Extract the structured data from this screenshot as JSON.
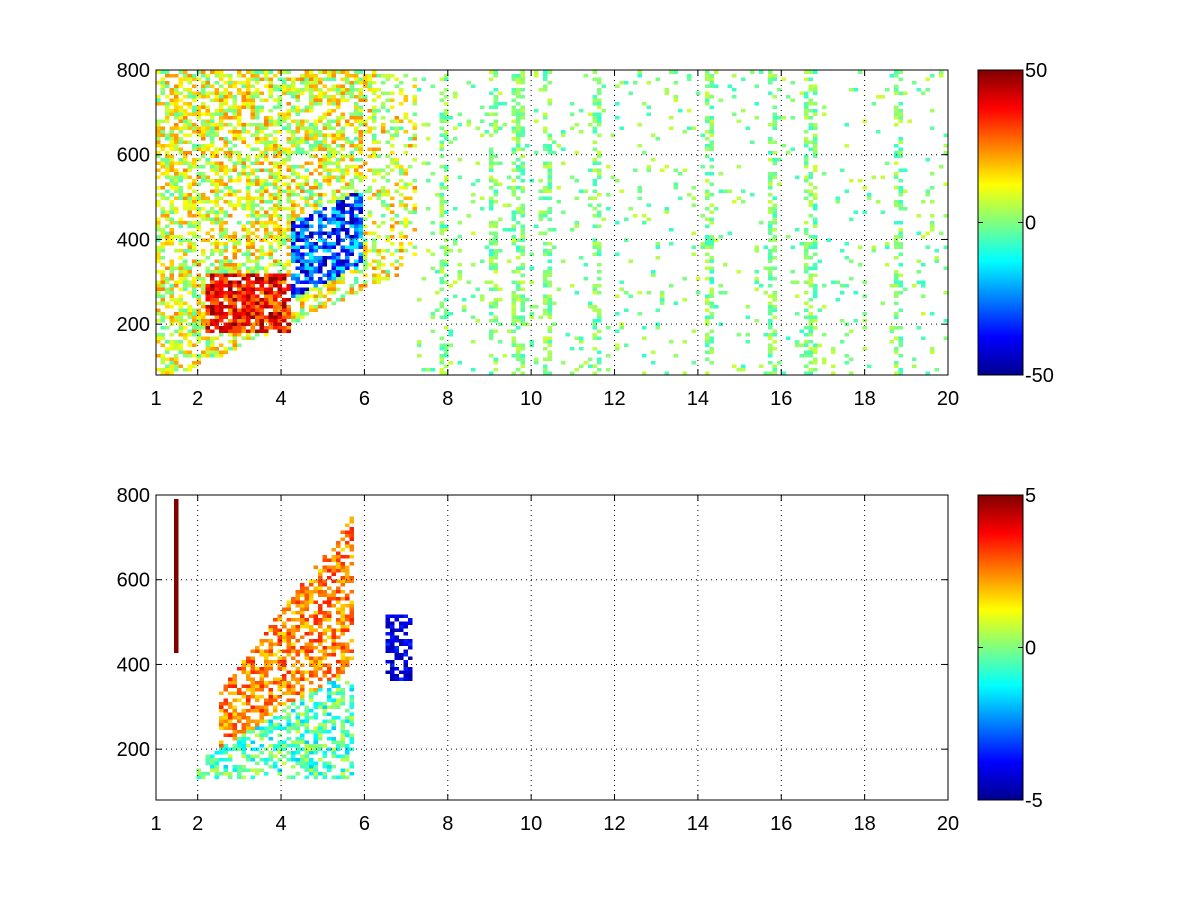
{
  "figure": {
    "background": "#ffffff"
  },
  "chart_data": [
    {
      "type": "heatmap",
      "title": "",
      "xlabel": "",
      "ylabel": "",
      "xlim": [
        1,
        20
      ],
      "ylim": [
        80,
        800
      ],
      "grid": true,
      "xticks": [
        1,
        2,
        4,
        6,
        8,
        10,
        12,
        14,
        16,
        18,
        20
      ],
      "yticks": [
        200,
        400,
        600,
        800
      ],
      "colormap": "jet",
      "clim": [
        -50,
        50
      ],
      "colorbar_ticks": [
        -50,
        0,
        50
      ],
      "description_of_field": "dense mixed values for x 1-7 (positive ~200-300 near x 2-4, negative ~250-450 near x 4-6); sparse near-zero streaks for x 7-20",
      "features": [
        {
          "name": "positive-band",
          "x": [
            2.2,
            4.2
          ],
          "y": [
            180,
            320
          ],
          "value": 35
        },
        {
          "name": "negative-band",
          "x": [
            4.2,
            6.0
          ],
          "y": [
            230,
            450
          ],
          "value": -30
        },
        {
          "name": "scattered-region",
          "x": [
            1.0,
            7.3
          ],
          "y": [
            80,
            800
          ],
          "value": 10
        },
        {
          "name": "vertical-streaks",
          "x_positions": [
            7.9,
            9.1,
            9.7,
            10.4,
            11.6,
            14.3,
            15.8,
            16.7,
            18.8
          ],
          "value": 0
        }
      ]
    },
    {
      "type": "heatmap",
      "title": "",
      "xlabel": "",
      "ylabel": "",
      "xlim": [
        1,
        20
      ],
      "ylim": [
        80,
        800
      ],
      "grid": true,
      "xticks": [
        1,
        2,
        4,
        6,
        8,
        10,
        12,
        14,
        16,
        18,
        20
      ],
      "yticks": [
        200,
        400,
        600,
        800
      ],
      "colormap": "jet",
      "clim": [
        -5,
        5
      ],
      "colorbar_ticks": [
        -5,
        0,
        5
      ],
      "description_of_field": "sparse; positive ~2-3 along a rising band x 2-6, near-zero/negative below it, negative cluster near x 6.5-7 y ~420",
      "features": [
        {
          "name": "positive-band",
          "x": [
            2.5,
            5.8
          ],
          "y": [
            250,
            780
          ],
          "value": 2.5
        },
        {
          "name": "near-zero-region",
          "x": [
            2.0,
            5.0
          ],
          "y": [
            100,
            300
          ],
          "value": -0.5
        },
        {
          "name": "negative-cluster",
          "x": [
            6.5,
            7.1
          ],
          "y": [
            360,
            520
          ],
          "value": -4
        },
        {
          "name": "edge-line",
          "x": [
            1.4,
            1.45
          ],
          "y": [
            430,
            790
          ],
          "value": 5
        }
      ]
    }
  ]
}
